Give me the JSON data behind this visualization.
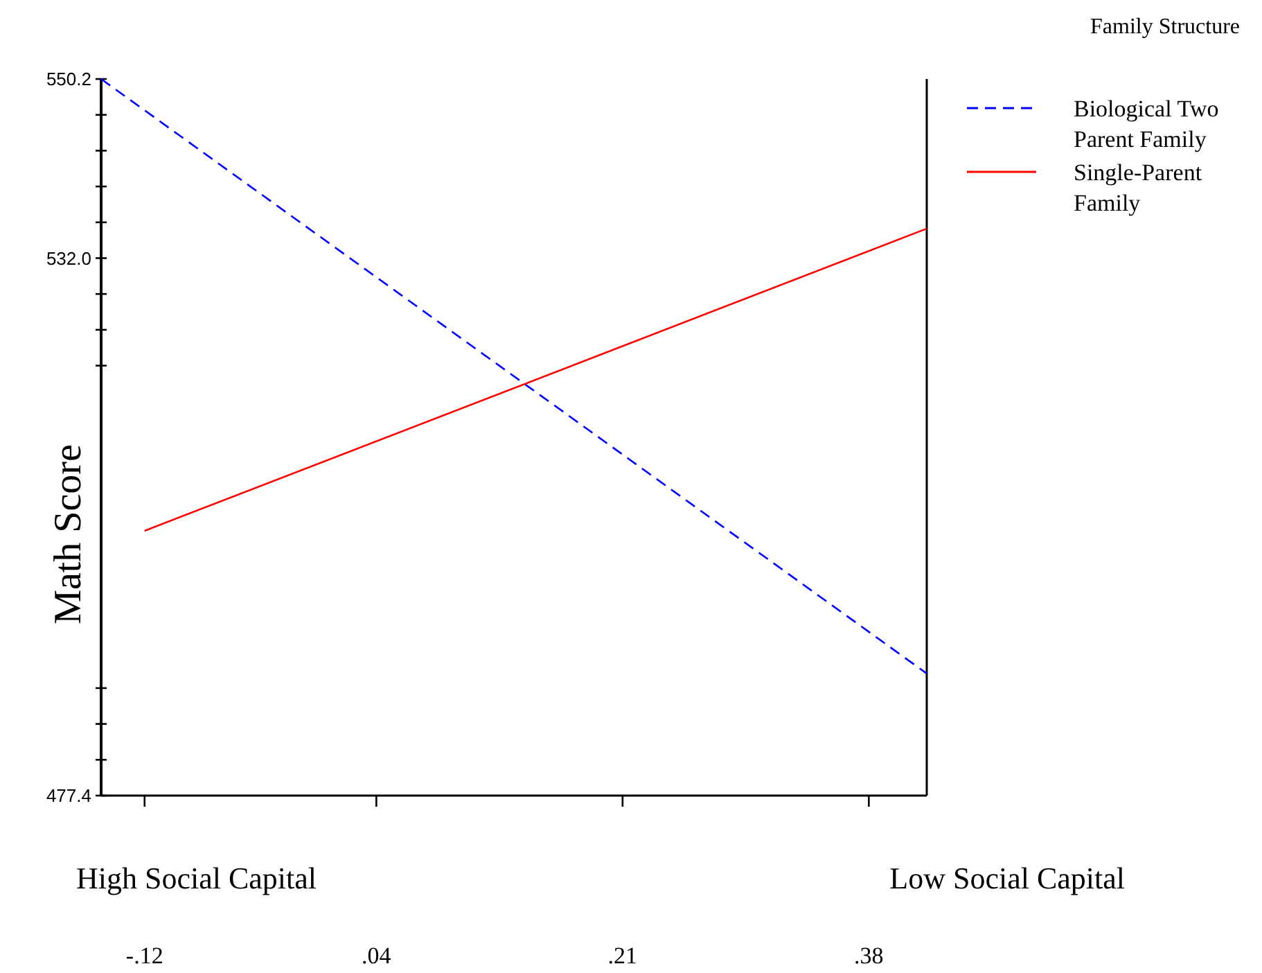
{
  "chart_data": {
    "type": "line",
    "ylabel": "Math Score",
    "legend_title": "Family Structure",
    "legend": "top right",
    "annotations": [
      "High Social Capital",
      "Low Social Capital"
    ],
    "xlim": [
      -0.15,
      0.42
    ],
    "xticks": [
      {
        "value": -0.12,
        "label": "-.12"
      },
      {
        "value": 0.04,
        "label": ".04"
      },
      {
        "value": 0.21,
        "label": ".21"
      },
      {
        "value": 0.38,
        "label": ".38"
      }
    ],
    "ylim": [
      477.4,
      550.2
    ],
    "yticks": [
      550.2,
      {
        "value": 546.56,
        "label": null
      },
      {
        "value": 542.92,
        "label": null
      },
      {
        "value": 539.28,
        "label": null
      },
      {
        "value": 535.64,
        "label": null
      },
      {
        "value": 532.0,
        "label": "532.0"
      },
      {
        "value": 528.36,
        "label": null
      },
      {
        "value": 524.72,
        "label": null
      },
      {
        "value": 521.08,
        "label": null
      },
      {
        "value": 488.32,
        "label": null
      },
      {
        "value": 484.68,
        "label": null
      },
      {
        "value": 481.04,
        "label": null
      },
      477.4
    ],
    "series": [
      {
        "name": "Biological Two Parent Family",
        "color": "#0000ff",
        "line_style": "dashed",
        "x": [
          -0.15,
          0.42
        ],
        "values": [
          550.2,
          489.8
        ]
      },
      {
        "name": "Single-Parent Family",
        "color": "#ff0000",
        "line_style": "solid",
        "x": [
          -0.12,
          0.42
        ],
        "values": [
          504.3,
          535.0
        ]
      }
    ]
  }
}
